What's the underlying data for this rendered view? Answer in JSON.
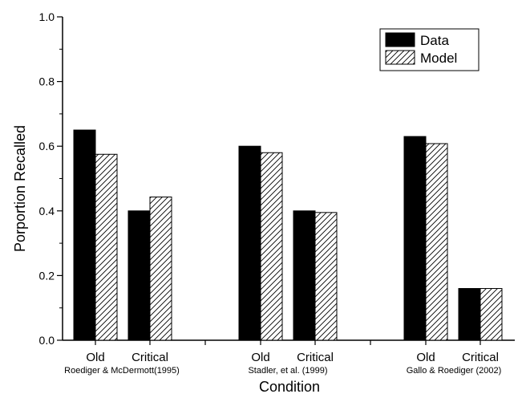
{
  "chart_data": {
    "type": "bar",
    "xlabel": "Condition",
    "ylabel": "Porportion Recalled",
    "ylim": [
      0,
      1.0
    ],
    "yticks": [
      "0.0",
      "0.2",
      "0.4",
      "0.6",
      "0.8",
      "1.0"
    ],
    "grid": false,
    "legend_position": "top-right",
    "groups": [
      "Roediger & McDermott(1995)",
      "Stadler, et al. (1999)",
      "Gallo & Roediger (2002)"
    ],
    "categories": [
      "Old",
      "Critical",
      "Old",
      "Critical",
      "Old",
      "Critical"
    ],
    "series": [
      {
        "name": "Data",
        "values": [
          0.65,
          0.4,
          0.6,
          0.4,
          0.63,
          0.16
        ],
        "color": "#000000",
        "pattern": "solid"
      },
      {
        "name": "Model",
        "values": [
          0.575,
          0.443,
          0.58,
          0.395,
          0.608,
          0.16
        ],
        "color": "#ffffff",
        "pattern": "hatch"
      }
    ]
  }
}
